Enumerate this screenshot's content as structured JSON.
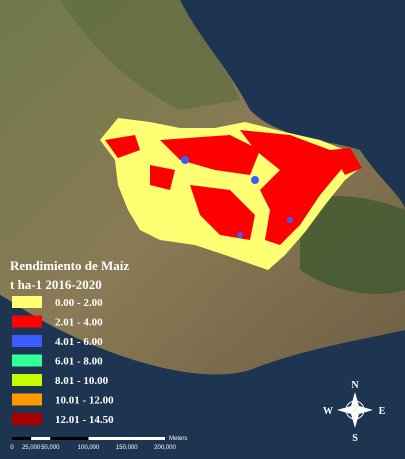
{
  "legend": {
    "title": "Rendimiento de Maíz",
    "subtitle": "t ha-1  2016-2020",
    "items": [
      {
        "label": "0.00 - 2.00",
        "color": "#ffff73"
      },
      {
        "label": "2.01 - 4.00",
        "color": "#ff0000"
      },
      {
        "label": "4.01 - 6.00",
        "color": "#3d5cff"
      },
      {
        "label": "6.01 - 8.00",
        "color": "#33ff99"
      },
      {
        "label": "8.01 - 10.00",
        "color": "#c8ff00"
      },
      {
        "label": "10.01 - 12.00",
        "color": "#ff9900"
      },
      {
        "label": "12.01 - 14.50",
        "color": "#a80000"
      }
    ]
  },
  "compass": {
    "north": "N",
    "south": "S",
    "east": "E",
    "west": "W"
  },
  "scale_bar": {
    "labels": [
      "0",
      "25,000",
      "50,000",
      "100,000",
      "150,000",
      "200,000"
    ],
    "unit": "Meters"
  }
}
